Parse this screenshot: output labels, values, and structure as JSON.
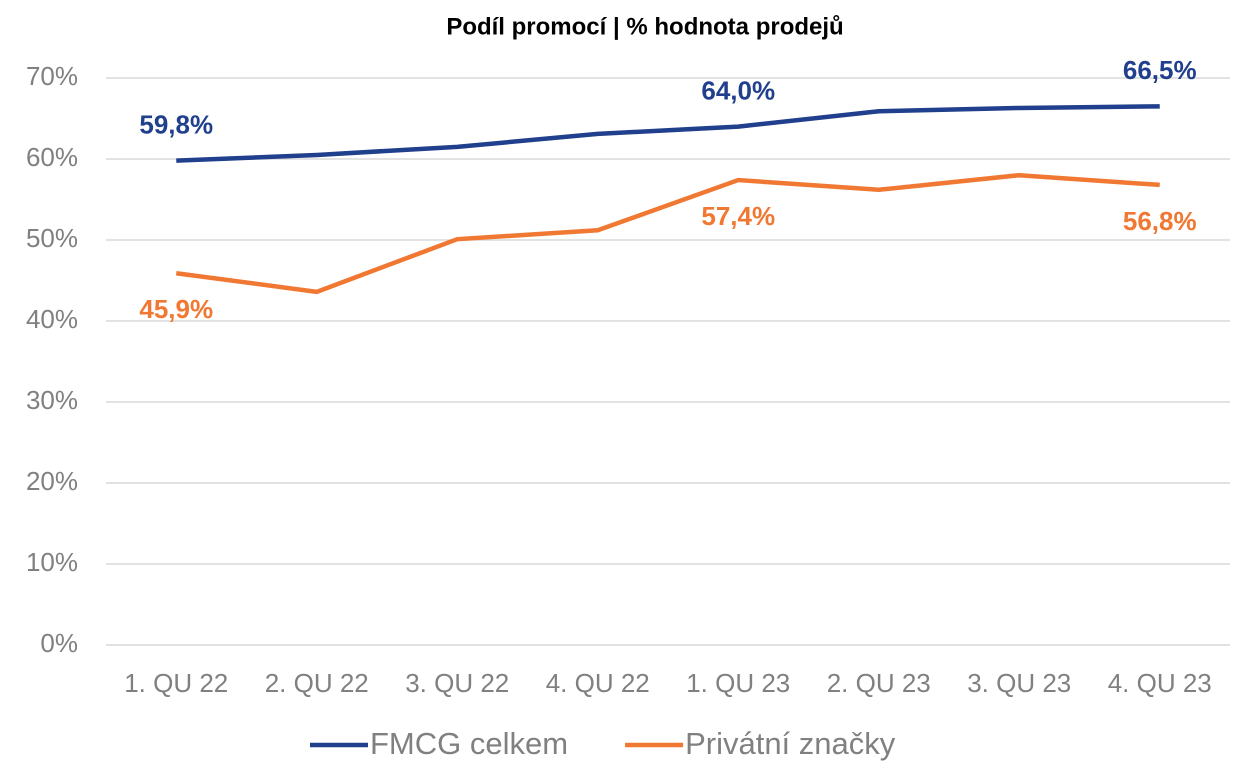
{
  "chart_data": {
    "type": "line",
    "title": "Podíl promocí | % hodnota prodejů",
    "categories": [
      "1. QU 22",
      "2. QU 22",
      "3. QU 22",
      "4. QU 22",
      "1. QU 23",
      "2. QU 23",
      "3. QU 23",
      "4. QU 23"
    ],
    "series": [
      {
        "name": "FMCG celkem",
        "color": "#203f8c",
        "values": [
          59.8,
          60.5,
          61.5,
          63.1,
          64.0,
          65.9,
          66.3,
          66.5
        ],
        "value_labels": [
          "59,8%",
          null,
          null,
          null,
          "64,0%",
          null,
          null,
          "66,5%"
        ]
      },
      {
        "name": "Privátní značky",
        "color": "#f07832",
        "values": [
          45.9,
          43.6,
          50.1,
          51.2,
          57.4,
          56.2,
          58.0,
          56.8
        ],
        "value_labels": [
          "45,9%",
          null,
          null,
          null,
          "57,4%",
          null,
          null,
          "56,8%"
        ]
      }
    ],
    "ylim": [
      0,
      70
    ],
    "yticks": [
      {
        "value": 0,
        "label": "0%"
      },
      {
        "value": 10,
        "label": "10%"
      },
      {
        "value": 20,
        "label": "20%"
      },
      {
        "value": 30,
        "label": "30%"
      },
      {
        "value": 40,
        "label": "40%"
      },
      {
        "value": 50,
        "label": "50%"
      },
      {
        "value": 60,
        "label": "60%"
      },
      {
        "value": 70,
        "label": "70%"
      }
    ],
    "grid": true,
    "legend": "bottom"
  }
}
